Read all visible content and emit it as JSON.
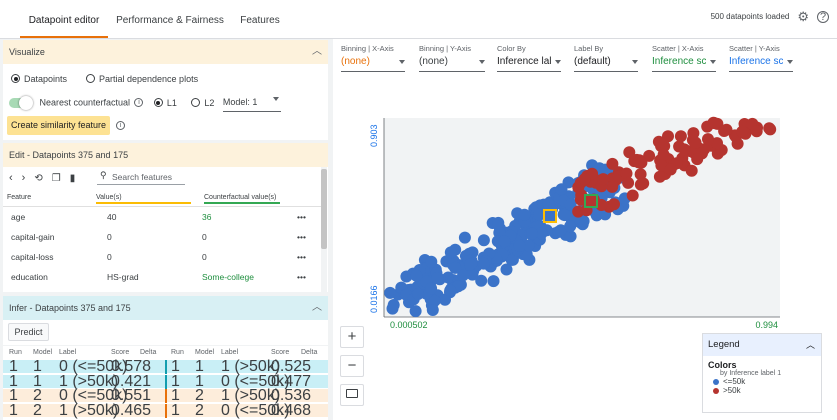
{
  "tabs": [
    {
      "label": "Datapoint editor",
      "active": true
    },
    {
      "label": "Performance & Fairness",
      "active": false
    },
    {
      "label": "Features",
      "active": false
    }
  ],
  "status": {
    "loaded": "500 datapoints loaded",
    "gear_icon": "gear-icon",
    "help_icon": "help-icon"
  },
  "visualize": {
    "title": "Visualize",
    "datapoints": "Datapoints",
    "pdp": "Partial dependence plots",
    "nearest": "Nearest counterfactual",
    "l1": "L1",
    "l2": "L2",
    "model": "Model: 1",
    "similarity_button": "Create similarity feature"
  },
  "edit": {
    "title": "Edit - Datapoints 375 and 175",
    "search_placeholder": "Search features",
    "headers": {
      "feature": "Feature",
      "value": "Value(s)",
      "counterfactual": "Counterfactual value(s)"
    },
    "rows": [
      {
        "feature": "age",
        "value": "40",
        "cf": "36",
        "cf_changed": true
      },
      {
        "feature": "capital-gain",
        "value": "0",
        "cf": "0",
        "cf_changed": false
      },
      {
        "feature": "capital-loss",
        "value": "0",
        "cf": "0",
        "cf_changed": false
      },
      {
        "feature": "education",
        "value": "HS-grad",
        "cf": "Some-college",
        "cf_changed": true
      }
    ],
    "more": "•••"
  },
  "infer": {
    "title": "Infer - Datapoints 375 and 175",
    "predict_button": "Predict",
    "headers": [
      "Run",
      "Model",
      "Label",
      "Score",
      "Delta"
    ],
    "left_rows": [
      [
        "1",
        "1",
        "0 (<=50k)",
        "0.578",
        ""
      ],
      [
        "1",
        "1",
        "1 (>50k)",
        "0.421",
        ""
      ],
      [
        "1",
        "2",
        "0 (<=50k)",
        "0.551",
        ""
      ],
      [
        "1",
        "2",
        "1 (>50k)",
        "0.465",
        ""
      ]
    ],
    "right_rows": [
      [
        "1",
        "1",
        "1 (>50k)",
        "0.525",
        ""
      ],
      [
        "1",
        "1",
        "0 (<=50k)",
        "0.477",
        ""
      ],
      [
        "1",
        "2",
        "1 (>50k)",
        "0.536",
        ""
      ],
      [
        "1",
        "2",
        "0 (<=50k)",
        "0.468",
        ""
      ]
    ]
  },
  "controls": [
    {
      "caption": "Binning | X-Axis",
      "value": "(none)",
      "color": "#e8710a"
    },
    {
      "caption": "Binning | Y-Axis",
      "value": "(none)",
      "color": "#3c4043"
    },
    {
      "caption": "Color By",
      "value": "Inference lal",
      "color": "#202124"
    },
    {
      "caption": "Label By",
      "value": "(default)",
      "color": "#202124"
    },
    {
      "caption": "Scatter | X-Axis",
      "value": "Inference sc",
      "color": "#1e8e3e"
    },
    {
      "caption": "Scatter | Y-Axis",
      "value": "Inference sc",
      "color": "#1a73e8"
    }
  ],
  "axes": {
    "x_min": "0.000502",
    "x_max": "0.994",
    "y_min": "0.0166",
    "y_max": "0.903"
  },
  "zoom": {
    "plus": "+",
    "minus": "−",
    "fit_icon": "fit-screen-icon"
  },
  "legend": {
    "title": "Legend",
    "colors_title": "Colors",
    "by": "by Inference label 1",
    "items": [
      {
        "label": "<=50k",
        "color": "#3b73c8"
      },
      {
        "label": ">50k",
        "color": "#b5342f"
      }
    ]
  },
  "colors": {
    "accent": "#e8710a",
    "blue_point": "#3b73c8",
    "red_point": "#b5342f",
    "plot_bg": "#f1f3f4"
  }
}
